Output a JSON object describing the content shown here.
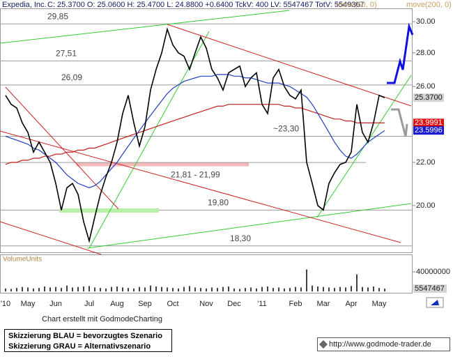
{
  "header": {
    "stats": "C: 25.3700  O: 25.0600  H: 25.4700  L: 24.8800  +0.6400  TckV: 400  LV: 5547467  TotV: 5549367"
  },
  "chart_data": {
    "type": "line",
    "log": true,
    "ylim": [
      18.04,
      30.89
    ],
    "yticks": [
      {
        "value": 30,
        "label": "30.00"
      },
      {
        "value": 28,
        "label": "28.00"
      },
      {
        "value": 26,
        "label": "26.00"
      },
      {
        "value": 22,
        "label": "22.00"
      },
      {
        "value": 20,
        "label": "20.00"
      }
    ],
    "categories": [
      "'10",
      null,
      null,
      null,
      "May",
      null,
      null,
      null,
      null,
      "Jun",
      null,
      null,
      null,
      null,
      null,
      "Jul",
      null,
      null,
      null,
      null,
      "Aug",
      null,
      null,
      null,
      null,
      "Sep",
      null,
      null,
      null,
      null,
      "Oct",
      null,
      null,
      null,
      null,
      null,
      "Nov",
      null,
      null,
      null,
      null,
      "Dec",
      null,
      null,
      null,
      null,
      "'11",
      null,
      null,
      null,
      null,
      null,
      "Feb",
      null,
      null,
      null,
      null,
      "Mar",
      null,
      null,
      null,
      null,
      "Apr",
      null,
      null,
      null,
      null,
      "May",
      null
    ],
    "series": [
      {
        "name": "Expedia, Inc.",
        "color": "#000000",
        "values": [
          25.5,
          25.0,
          24.8,
          24.0,
          23.5,
          22.5,
          23.0,
          22.5,
          22.0,
          21.0,
          19.8,
          20.8,
          21.0,
          20.5,
          19.3,
          18.5,
          19.5,
          20.5,
          21.3,
          22.0,
          23.0,
          24.5,
          25.5,
          24.0,
          22.8,
          23.8,
          25.8,
          27.0,
          28.0,
          29.5,
          28.5,
          28.0,
          27.8,
          27.0,
          28.0,
          29.0,
          28.3,
          27.0,
          26.5,
          25.8,
          26.8,
          27.0,
          27.2,
          26.0,
          26.5,
          26.8,
          25.0,
          24.5,
          26.5,
          27.0,
          26.0,
          25.5,
          25.3,
          25.8,
          22.0,
          21.0,
          20.0,
          19.8,
          21.0,
          21.5,
          21.9,
          22.0,
          22.5,
          25.0,
          23.5,
          23.0,
          24.0,
          25.5,
          25.37
        ]
      },
      {
        "name": "move(50, 0)",
        "color": "#1f3fbf",
        "values": [
          23.3,
          23.2,
          23.1,
          23.0,
          22.9,
          22.7,
          22.6,
          22.4,
          22.2,
          22.0,
          21.7,
          21.4,
          21.2,
          21.0,
          20.9,
          20.8,
          20.9,
          21.1,
          21.4,
          21.7,
          22.0,
          22.4,
          22.8,
          23.2,
          23.6,
          24.0,
          24.4,
          24.8,
          25.2,
          25.6,
          25.9,
          26.1,
          26.3,
          26.4,
          26.5,
          26.6,
          26.6,
          26.6,
          26.7,
          26.7,
          26.7,
          26.6,
          26.6,
          26.5,
          26.5,
          26.4,
          26.3,
          26.2,
          26.2,
          26.2,
          26.1,
          26.0,
          25.8,
          25.6,
          25.4,
          25.0,
          24.5,
          24.0,
          23.5,
          23.0,
          22.6,
          22.3,
          22.2,
          22.4,
          22.7,
          23.0,
          23.2,
          23.4,
          23.5996
        ]
      },
      {
        "name": "move(200, 0)",
        "color": "#c41e1e",
        "values": [
          21.9,
          22.0,
          22.0,
          22.1,
          22.1,
          22.2,
          22.2,
          22.3,
          22.3,
          22.4,
          22.4,
          22.5,
          22.5,
          22.6,
          22.6,
          22.7,
          22.7,
          22.8,
          22.9,
          23.0,
          23.1,
          23.2,
          23.3,
          23.4,
          23.5,
          23.6,
          23.7,
          23.8,
          23.9,
          24.0,
          24.1,
          24.2,
          24.3,
          24.4,
          24.5,
          24.6,
          24.7,
          24.8,
          24.9,
          24.9,
          25.0,
          25.0,
          25.0,
          25.0,
          25.0,
          25.0,
          25.0,
          25.0,
          25.0,
          25.0,
          24.9,
          24.9,
          24.8,
          24.8,
          24.7,
          24.6,
          24.5,
          24.4,
          24.3,
          24.2,
          24.2,
          24.1,
          24.1,
          24.0,
          24.0,
          24.0,
          24.0,
          24.0,
          23.9991
        ]
      }
    ],
    "last_values": [
      {
        "value": 25.37,
        "label": "25.3700",
        "color": "#d4d4d4"
      },
      {
        "value": 23.9991,
        "label": "23.9991",
        "color": "#e01010"
      },
      {
        "value": 23.5996,
        "label": "23.5996",
        "color": "#1a1ad0"
      }
    ],
    "levels": [
      {
        "value": 29.85,
        "label": "29,85"
      },
      {
        "value": 27.51,
        "label": "27,51"
      },
      {
        "value": 26.09,
        "label": "26,09"
      },
      {
        "value": 23.3,
        "label": "~23,30"
      },
      {
        "low": 21.81,
        "high": 21.99,
        "label": "21,81 - 21,99"
      },
      {
        "value": 19.8,
        "label": "19,80"
      },
      {
        "value": 18.3,
        "label": "18,30"
      }
    ],
    "volume": {
      "label": "VolumeUnits",
      "ylim": [
        0,
        70000000
      ],
      "yticks": [
        40000000
      ],
      "color": "#000000",
      "values": [
        6000000,
        5000000,
        7000000,
        9000000,
        8000000,
        6000000,
        7000000,
        10000000,
        8000000,
        9000000,
        7000000,
        12000000,
        8000000,
        9000000,
        10000000,
        11000000,
        8000000,
        7000000,
        6000000,
        9000000,
        10000000,
        8000000,
        7000000,
        6000000,
        9000000,
        8000000,
        12000000,
        10000000,
        9000000,
        8000000,
        7000000,
        6000000,
        9000000,
        11000000,
        8000000,
        7000000,
        6000000,
        8000000,
        7000000,
        9000000,
        10000000,
        6000000,
        5000000,
        7000000,
        8000000,
        6000000,
        9000000,
        10000000,
        7000000,
        8000000,
        6000000,
        7000000,
        9000000,
        8000000,
        45000000,
        12000000,
        10000000,
        9000000,
        8000000,
        7000000,
        9000000,
        8000000,
        11000000,
        35000000,
        9000000,
        8000000,
        10000000,
        7000000,
        5547467
      ]
    }
  },
  "footer": {
    "credit": "Chart erstellt mit GodmodeCharting",
    "legend_blue": "Skizzierung BLAU = bevorzugtes Szenario",
    "legend_grey": "Skizzierung GRAU = Alternativszenario",
    "url": "http://www.godmode-trader.de"
  }
}
